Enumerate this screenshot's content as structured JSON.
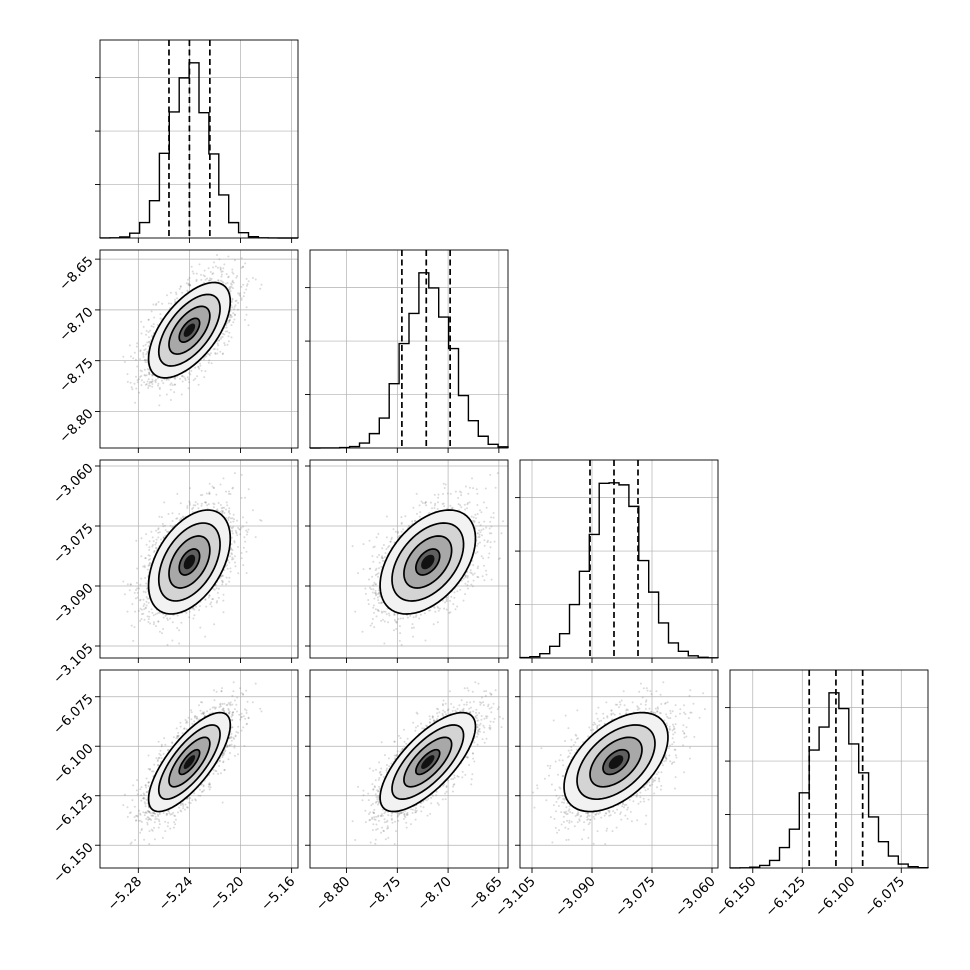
{
  "chart_data": {
    "type": "corner",
    "n_parameters": 4,
    "parameters": [
      {
        "index": 0,
        "mean": -5.24,
        "sigma": 0.016,
        "quantiles": [
          -5.256,
          -5.24,
          -5.224
        ],
        "range": [
          -5.31,
          -5.155
        ],
        "ticks": [
          -5.28,
          -5.24,
          -5.2,
          -5.16
        ],
        "tick_labels": [
          "−5.28",
          "−5.24",
          "−5.20",
          "−5.16"
        ]
      },
      {
        "index": 1,
        "mean": -8.72,
        "sigma": 0.0235,
        "quantiles": [
          -8.7455,
          -8.7215,
          -8.698
        ],
        "range": [
          -8.836,
          -8.641
        ],
        "ticks": [
          -8.65,
          -8.7,
          -8.75,
          -8.8
        ],
        "tick_labels": [
          "−8.65",
          "−8.70",
          "−8.75",
          "−8.80"
        ],
        "x_ticks": [
          -8.8,
          -8.75,
          -8.7,
          -8.65
        ],
        "x_tick_labels": [
          "−8.80",
          "−8.75",
          "−8.70",
          "−8.65"
        ]
      },
      {
        "index": 2,
        "mean": -3.084,
        "sigma": 0.0065,
        "quantiles": [
          -3.0905,
          -3.0845,
          -3.0785
        ],
        "range": [
          -3.108,
          -3.0585
        ],
        "ticks": [
          -3.06,
          -3.075,
          -3.09,
          -3.105
        ],
        "tick_labels": [
          "−3.060",
          "−3.075",
          "−3.090",
          "−3.105"
        ],
        "x_ticks": [
          -3.105,
          -3.09,
          -3.075,
          -3.06
        ],
        "x_tick_labels": [
          "−3.105",
          "−3.090",
          "−3.075",
          "−3.060"
        ]
      },
      {
        "index": 3,
        "mean": -6.108,
        "sigma": 0.0125,
        "quantiles": [
          -6.1215,
          -6.108,
          -6.0945
        ],
        "range": [
          -6.1615,
          -6.0615
        ],
        "ticks": [
          -6.075,
          -6.1,
          -6.125,
          -6.15
        ],
        "tick_labels": [
          "−6.075",
          "−6.100",
          "−6.125",
          "−6.150"
        ],
        "x_ticks": [
          -6.15,
          -6.125,
          -6.1,
          -6.075
        ],
        "x_tick_labels": [
          "−6.150",
          "−6.125",
          "−6.100",
          "−6.075"
        ]
      }
    ],
    "correlations": {
      "0-1": 0.6,
      "0-2": 0.45,
      "1-2": 0.45,
      "0-3": 0.75,
      "1-3": 0.72,
      "2-3": 0.5
    },
    "histogram_bins": 20,
    "contour_levels_sigma": [
      0.5,
      1.0,
      1.5,
      2.0
    ],
    "grid": true,
    "colors": {
      "line": "#000000",
      "points": "#7a7a7a",
      "grid": "#b0b0b0"
    }
  }
}
